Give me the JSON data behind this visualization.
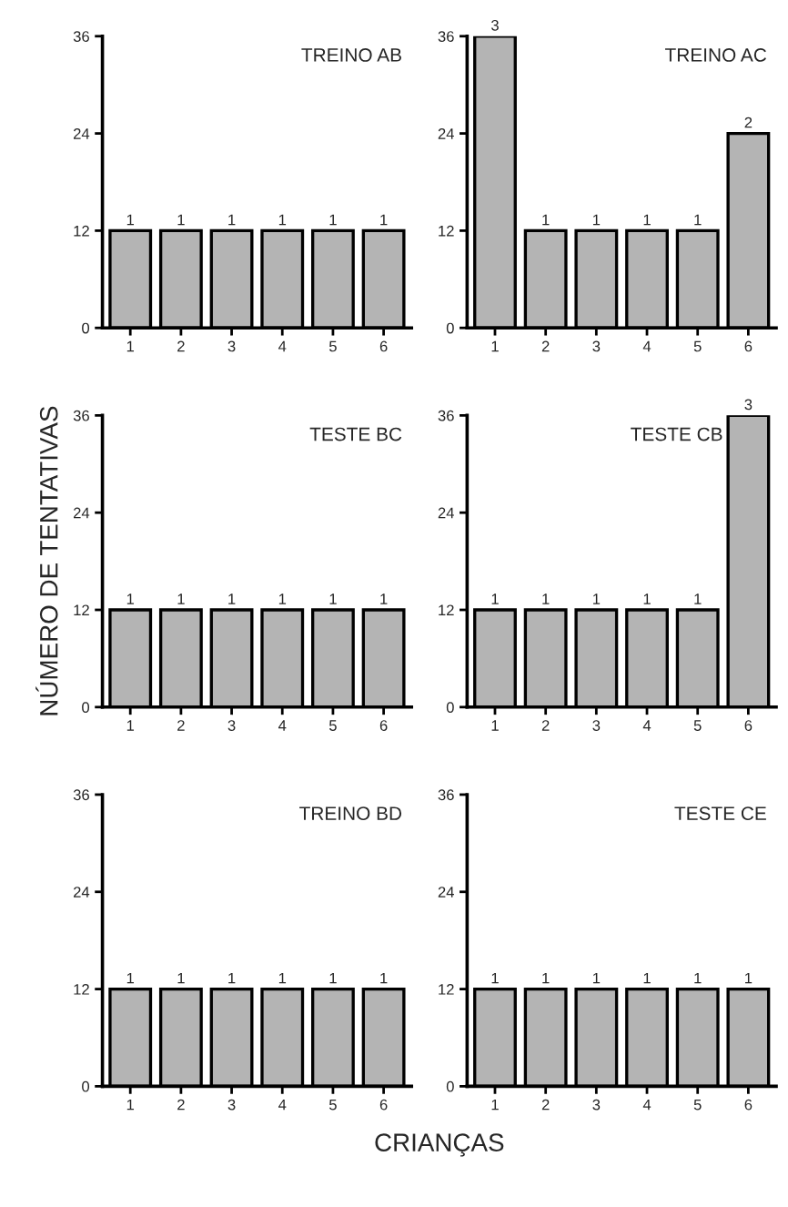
{
  "chart_data": [
    {
      "type": "bar",
      "title": "TREINO AB",
      "categories": [
        "1",
        "2",
        "3",
        "4",
        "5",
        "6"
      ],
      "values": [
        12,
        12,
        12,
        12,
        12,
        12
      ],
      "color": "#b4b4b4",
      "ylim": [
        0,
        36
      ],
      "yticks": [
        0,
        12,
        24,
        36
      ],
      "grid": false,
      "legend": false,
      "annotations": [
        {
          "text": "1",
          "x": "1",
          "y": 12
        },
        {
          "text": "1",
          "x": "2",
          "y": 12
        },
        {
          "text": "1",
          "x": "3",
          "y": 12
        },
        {
          "text": "1",
          "x": "4",
          "y": 12
        },
        {
          "text": "1",
          "x": "5",
          "y": 12
        },
        {
          "text": "1",
          "x": "6",
          "y": 12
        }
      ]
    },
    {
      "type": "bar",
      "title": "TREINO AC",
      "categories": [
        "1",
        "2",
        "3",
        "4",
        "5",
        "6"
      ],
      "values": [
        36,
        12,
        12,
        12,
        12,
        24
      ],
      "color": "#b4b4b4",
      "ylim": [
        0,
        36
      ],
      "yticks": [
        0,
        12,
        24,
        36
      ],
      "grid": false,
      "legend": false,
      "annotations": [
        {
          "text": "3",
          "x": "1",
          "y": 36
        },
        {
          "text": "1",
          "x": "2",
          "y": 12
        },
        {
          "text": "1",
          "x": "3",
          "y": 12
        },
        {
          "text": "1",
          "x": "4",
          "y": 12
        },
        {
          "text": "1",
          "x": "5",
          "y": 12
        },
        {
          "text": "2",
          "x": "6",
          "y": 24
        }
      ]
    },
    {
      "type": "bar",
      "title": "TESTE BC",
      "ylabel": "NÚMERO DE TENTATIVAS",
      "categories": [
        "1",
        "2",
        "3",
        "4",
        "5",
        "6"
      ],
      "values": [
        12,
        12,
        12,
        12,
        12,
        12
      ],
      "color": "#b4b4b4",
      "ylim": [
        0,
        36
      ],
      "yticks": [
        0,
        12,
        24,
        36
      ],
      "grid": false,
      "legend": false,
      "annotations": [
        {
          "text": "1",
          "x": "1",
          "y": 12
        },
        {
          "text": "1",
          "x": "2",
          "y": 12
        },
        {
          "text": "1",
          "x": "3",
          "y": 12
        },
        {
          "text": "1",
          "x": "4",
          "y": 12
        },
        {
          "text": "1",
          "x": "5",
          "y": 12
        },
        {
          "text": "1",
          "x": "6",
          "y": 12
        }
      ]
    },
    {
      "type": "bar",
      "title": "TESTE CB",
      "categories": [
        "1",
        "2",
        "3",
        "4",
        "5",
        "6"
      ],
      "values": [
        12,
        12,
        12,
        12,
        12,
        36
      ],
      "color": "#b4b4b4",
      "ylim": [
        0,
        36
      ],
      "yticks": [
        0,
        12,
        24,
        36
      ],
      "grid": false,
      "legend": false,
      "annotations": [
        {
          "text": "1",
          "x": "1",
          "y": 12
        },
        {
          "text": "1",
          "x": "2",
          "y": 12
        },
        {
          "text": "1",
          "x": "3",
          "y": 12
        },
        {
          "text": "1",
          "x": "4",
          "y": 12
        },
        {
          "text": "1",
          "x": "5",
          "y": 12
        },
        {
          "text": "3",
          "x": "6",
          "y": 36
        }
      ]
    },
    {
      "type": "bar",
      "title": "TREINO BD",
      "xlabel": "CRIANÇAS",
      "categories": [
        "1",
        "2",
        "3",
        "4",
        "5",
        "6"
      ],
      "values": [
        12,
        12,
        12,
        12,
        12,
        12
      ],
      "color": "#b4b4b4",
      "ylim": [
        0,
        36
      ],
      "yticks": [
        0,
        12,
        24,
        36
      ],
      "grid": false,
      "legend": false,
      "annotations": [
        {
          "text": "1",
          "x": "1",
          "y": 12
        },
        {
          "text": "1",
          "x": "2",
          "y": 12
        },
        {
          "text": "1",
          "x": "3",
          "y": 12
        },
        {
          "text": "1",
          "x": "4",
          "y": 12
        },
        {
          "text": "1",
          "x": "5",
          "y": 12
        },
        {
          "text": "1",
          "x": "6",
          "y": 12
        }
      ]
    },
    {
      "type": "bar",
      "title": "TESTE CE",
      "categories": [
        "1",
        "2",
        "3",
        "4",
        "5",
        "6"
      ],
      "values": [
        12,
        12,
        12,
        12,
        12,
        12
      ],
      "color": "#b4b4b4",
      "ylim": [
        0,
        36
      ],
      "yticks": [
        0,
        12,
        24,
        36
      ],
      "grid": false,
      "legend": false,
      "annotations": [
        {
          "text": "1",
          "x": "1",
          "y": 12
        },
        {
          "text": "1",
          "x": "2",
          "y": 12
        },
        {
          "text": "1",
          "x": "3",
          "y": 12
        },
        {
          "text": "1",
          "x": "4",
          "y": 12
        },
        {
          "text": "1",
          "x": "5",
          "y": 12
        },
        {
          "text": "1",
          "x": "6",
          "y": 12
        }
      ]
    }
  ]
}
